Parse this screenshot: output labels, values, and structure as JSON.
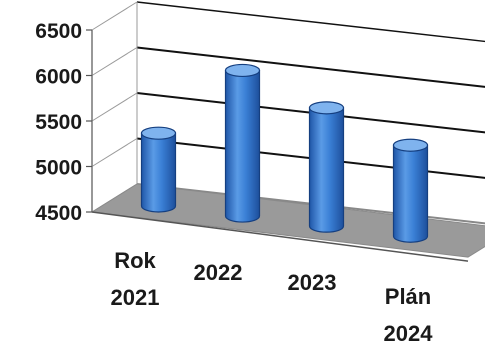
{
  "chart_data": {
    "type": "bar",
    "style": "3d-cylinder",
    "categories": [
      "Rok 2021",
      "2022",
      "2023",
      "Plán 2024"
    ],
    "category_label_lines": [
      [
        "Rok",
        "2021"
      ],
      [
        "2022"
      ],
      [
        "2023"
      ],
      [
        "Plán",
        "2024"
      ]
    ],
    "values": [
      5300,
      6100,
      5800,
      5500
    ],
    "ylim": [
      4500,
      6500
    ],
    "yticks": [
      "6500",
      "6000",
      "5500",
      "5000",
      "4500"
    ],
    "title": "",
    "xlabel": "",
    "ylabel": "",
    "grid": true,
    "legend": "none",
    "colors": {
      "bar": "#3a7fd5",
      "bar_dark": "#1f56a8",
      "bar_light": "#7fb3ee",
      "floor": "#9a9a9a",
      "grid": "#111111"
    }
  }
}
